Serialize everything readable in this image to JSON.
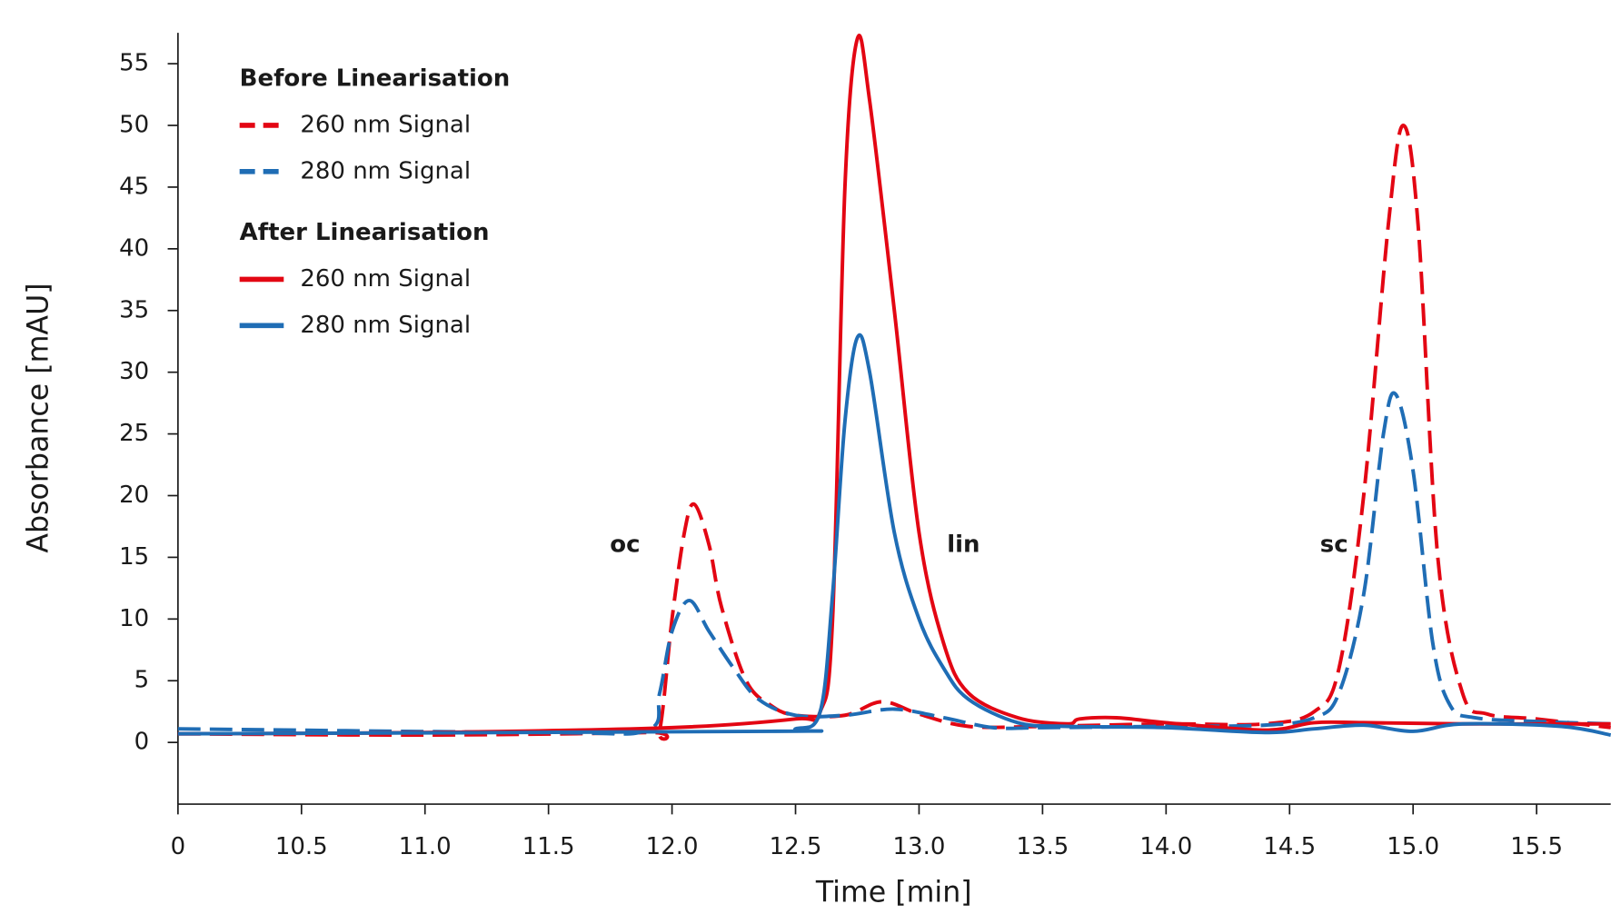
{
  "chart_data": {
    "type": "line",
    "x_label": "Time [min]",
    "y_label": "Absorbance [mAU]",
    "xlim": [
      10,
      15.8
    ],
    "ylim": [
      -5,
      57.5
    ],
    "xticks": [
      {
        "value": 10,
        "label": "0"
      },
      10.5,
      {
        "value": 11,
        "label": "11.0"
      },
      11.5,
      {
        "value": 12,
        "label": "12.0"
      },
      12.5,
      {
        "value": 13,
        "label": "13.0"
      },
      13.5,
      {
        "value": 14,
        "label": "14.0"
      },
      14.5,
      {
        "value": 15,
        "label": "15.0"
      },
      15.5
    ],
    "yticks": [
      0,
      5,
      10,
      15,
      20,
      25,
      30,
      35,
      40,
      45,
      50,
      55
    ],
    "legend_titles": [
      "Before Linearisation",
      "After Linearisation"
    ],
    "series": [
      {
        "name": "260 nm Signal",
        "color": "#e30613",
        "style": "dashed",
        "x": [
          10,
          11,
          11.9,
          11.95,
          12.0,
          12.05,
          12.09,
          12.15,
          12.2,
          12.3,
          12.4,
          12.5,
          12.7,
          12.85,
          13.0,
          13.2,
          13.5,
          14.0,
          14.4,
          14.6,
          14.7,
          14.8,
          14.9,
          14.96,
          15.02,
          15.1,
          15.2,
          15.3,
          15.5,
          15.8
        ],
        "values": [
          0.7,
          0.6,
          0.8,
          1,
          10,
          17,
          19.3,
          16,
          11,
          5,
          3,
          2.2,
          2.2,
          3.3,
          2.3,
          1.3,
          1.3,
          1.5,
          1.5,
          2.5,
          6,
          20,
          42,
          50,
          42,
          15,
          4,
          2.3,
          1.9,
          1.2
        ]
      },
      {
        "name": "280 nm Signal",
        "color": "#1f6db5",
        "style": "dashed",
        "x": [
          10,
          11.5,
          11.9,
          11.95,
          12.0,
          12.07,
          12.15,
          12.25,
          12.35,
          12.5,
          12.7,
          12.9,
          13.1,
          13.3,
          13.5,
          14.0,
          14.4,
          14.6,
          14.7,
          14.8,
          14.88,
          14.93,
          15.0,
          15.08,
          15.15,
          15.25,
          15.5,
          15.8
        ],
        "values": [
          1.1,
          0.8,
          1,
          4,
          9,
          11.5,
          9,
          6,
          3.5,
          2.2,
          2.2,
          2.7,
          2,
          1.2,
          1.2,
          1.3,
          1.4,
          2,
          4,
          12,
          25,
          28.2,
          22,
          8,
          3,
          2,
          1.7,
          1.5
        ]
      },
      {
        "name": "260 nm Signal",
        "color": "#e30613",
        "style": "solid",
        "x": [
          10,
          11,
          12,
          12.5,
          12.6,
          12.65,
          12.7,
          12.75,
          12.8,
          12.9,
          13.0,
          13.1,
          13.2,
          13.4,
          13.6,
          13.65,
          13.8,
          14.0,
          14.4,
          14.6,
          14.8,
          15.2,
          15.8
        ],
        "values": [
          0.7,
          0.8,
          1.2,
          1.9,
          2.5,
          10,
          45,
          57,
          52,
          35,
          17,
          8,
          4,
          2,
          1.5,
          1.9,
          2,
          1.6,
          1.0,
          1.6,
          1.6,
          1.5,
          1.5
        ]
      },
      {
        "name": "280 nm Signal",
        "color": "#1f6db5",
        "style": "solid",
        "x": [
          10,
          12.4,
          12.5,
          12.6,
          12.65,
          12.7,
          12.75,
          12.8,
          12.9,
          13.0,
          13.1,
          13.2,
          13.4,
          13.6,
          14.0,
          14.4,
          14.6,
          14.8,
          15.0,
          15.2,
          15.6,
          15.8
        ],
        "values": [
          0.7,
          0.9,
          1.1,
          2.5,
          12,
          26,
          32.8,
          30,
          17,
          10,
          6,
          3.5,
          1.6,
          1.3,
          1.2,
          0.8,
          1.1,
          1.4,
          0.9,
          1.5,
          1.3,
          0.6
        ]
      }
    ],
    "annotations": [
      {
        "text": "oc",
        "x": 11.81,
        "y": 16
      },
      {
        "text": "lin",
        "x": 13.18,
        "y": 16
      },
      {
        "text": "sc",
        "x": 14.68,
        "y": 16
      }
    ]
  }
}
